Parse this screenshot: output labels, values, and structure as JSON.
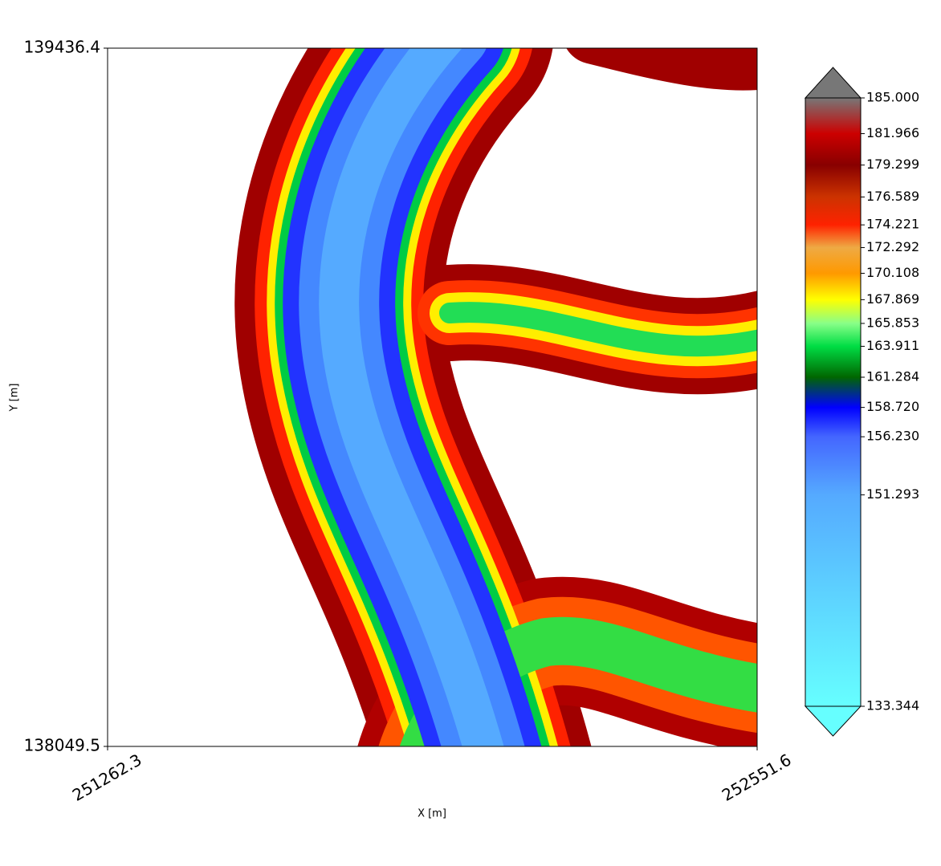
{
  "chart_data": {
    "type": "raster",
    "xlabel": "X [m]",
    "ylabel": "Y [m]",
    "xlim": [
      251262.3,
      252551.6
    ],
    "xticks": [
      251262.3,
      252551.6
    ],
    "ylim": [
      138049.5,
      139436.4
    ],
    "yticks": [
      138049.5,
      139436.4
    ],
    "colorbar": {
      "lim": [
        133.344,
        185
      ],
      "extend": "both",
      "ticks": [
        133.344,
        151.293,
        {
          "value": 156.23,
          "label": "156.230"
        },
        {
          "value": 158.72,
          "label": "158.720"
        },
        161.284,
        163.911,
        165.853,
        167.869,
        170.108,
        172.292,
        174.221,
        176.589,
        179.299,
        181.966,
        {
          "value": 185,
          "label": "185.000"
        }
      ],
      "colors": [
        "#66ffff",
        "#55aaff",
        "#4466ff",
        "#0000ff",
        "#006600",
        "#00dd44",
        "#88ff88",
        "#ffff00",
        "#ff9900",
        "#eeaa44",
        "#ff2200",
        "#cc3300",
        "#880000",
        "#cc0000",
        "#777777"
      ]
    }
  }
}
